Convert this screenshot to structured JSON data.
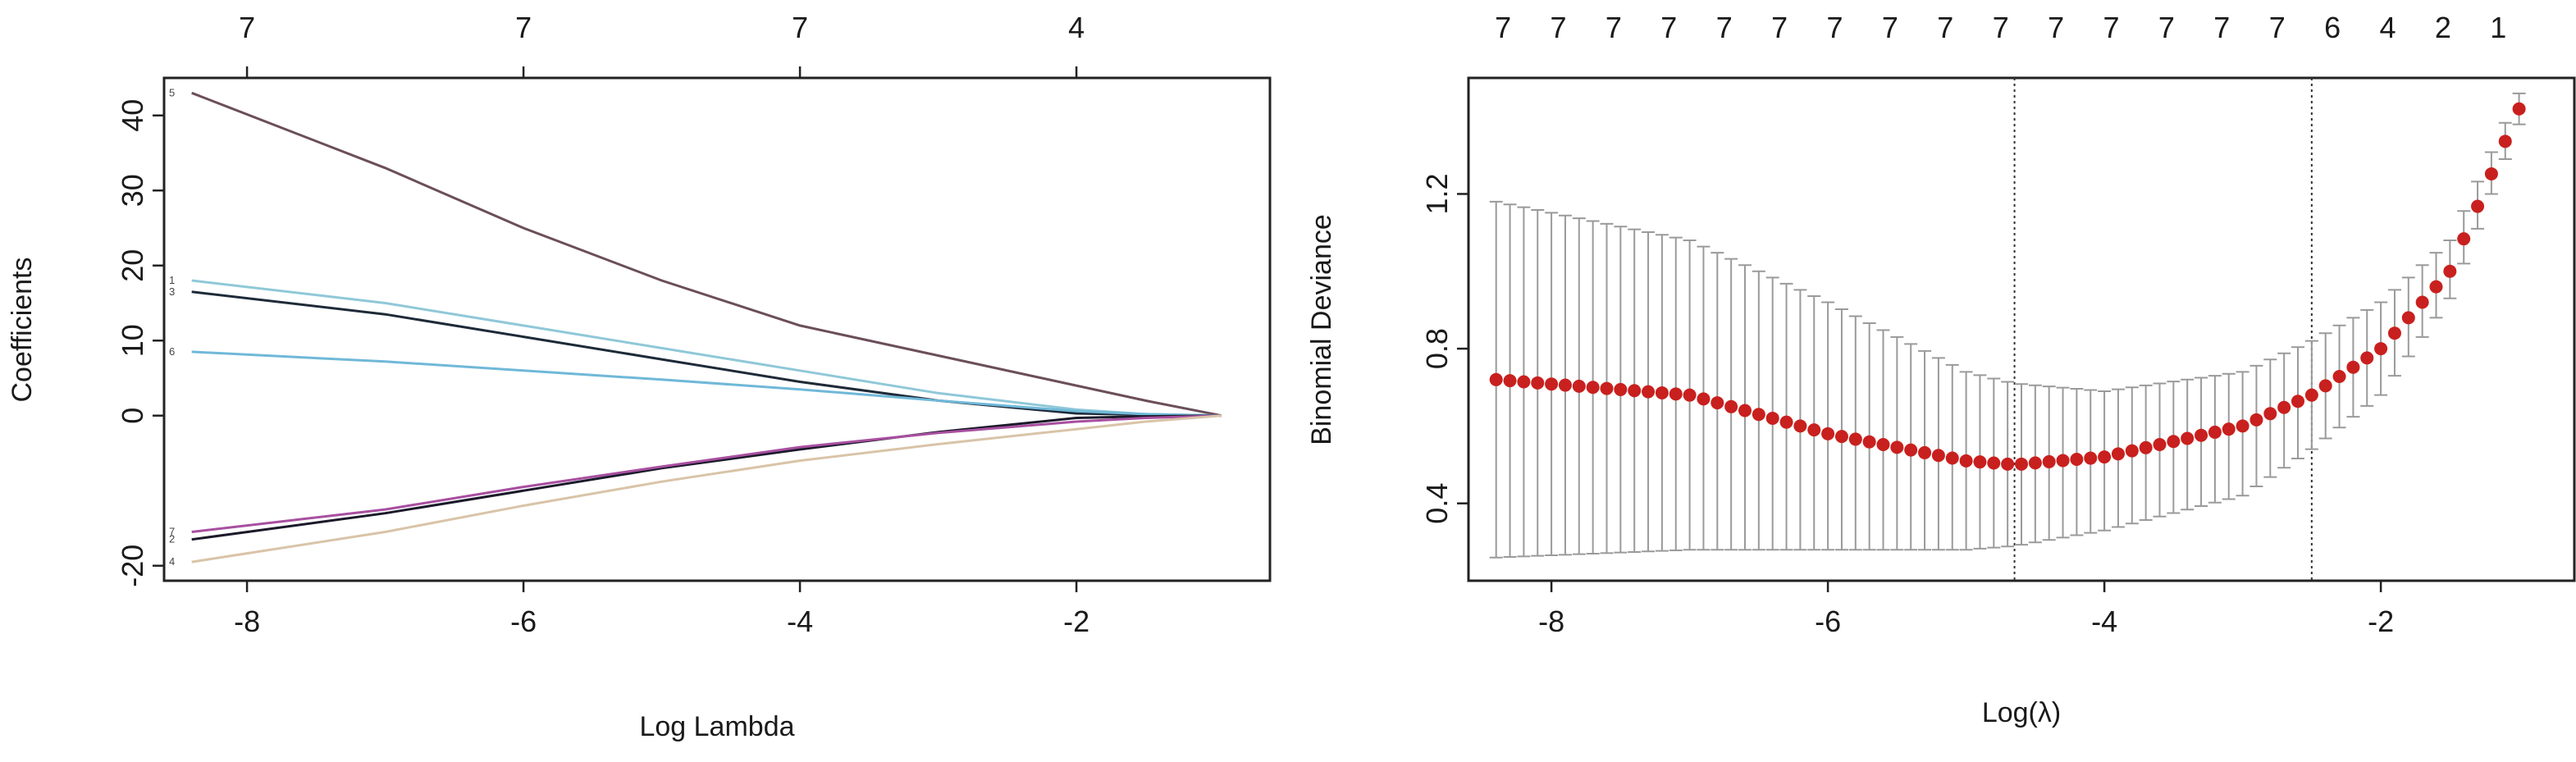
{
  "chart_data": [
    {
      "type": "line",
      "xlabel": "Log Lambda",
      "ylabel": "Coefficients",
      "xlim": [
        -8.6,
        -0.6
      ],
      "ylim": [
        -22,
        45
      ],
      "x_ticks": [
        -8,
        -6,
        -4,
        -2
      ],
      "y_ticks": [
        -20,
        0,
        10,
        20,
        30,
        40
      ],
      "top_axis": {
        "positions": [
          -8,
          -6,
          -4,
          -2
        ],
        "labels": [
          "7",
          "7",
          "7",
          "4"
        ]
      },
      "grid": false,
      "line_end_labels": [
        "5",
        "1",
        "3",
        "6",
        "2",
        "7",
        "4"
      ],
      "series": [
        {
          "color": "#6b4e5a",
          "x": [
            -8.4,
            -7,
            -6,
            -5,
            -4,
            -3,
            -2,
            -1.5,
            -0.95
          ],
          "y": [
            43,
            33,
            25,
            18,
            12,
            8,
            4,
            2,
            0
          ]
        },
        {
          "color": "#8fc8d8",
          "x": [
            -8.4,
            -7,
            -6,
            -5,
            -4,
            -3,
            -2,
            -1.5,
            -0.95
          ],
          "y": [
            18,
            15,
            12,
            9,
            6,
            3,
            0.8,
            0.2,
            0
          ]
        },
        {
          "color": "#1e2a38",
          "x": [
            -8.4,
            -7,
            -6,
            -5,
            -4,
            -3,
            -2,
            -1.5,
            -0.95
          ],
          "y": [
            16.5,
            13.5,
            10.5,
            7.5,
            4.5,
            2,
            0.3,
            0.1,
            0
          ]
        },
        {
          "color": "#6fb8d8",
          "x": [
            -8.4,
            -7,
            -6,
            -5,
            -4,
            -3,
            -2,
            -1.5,
            -0.95
          ],
          "y": [
            8.5,
            7.2,
            6,
            4.8,
            3.5,
            2,
            0.6,
            0.2,
            0
          ]
        },
        {
          "color": "#1a1a2a",
          "x": [
            -8.4,
            -7,
            -6,
            -5,
            -4,
            -3,
            -2,
            -1.5,
            -0.95
          ],
          "y": [
            -16.5,
            -13,
            -10,
            -7,
            -4.5,
            -2.2,
            -0.3,
            -0.1,
            0
          ]
        },
        {
          "color": "#a84fa0",
          "x": [
            -8.4,
            -7,
            -6,
            -5,
            -4,
            -3,
            -2,
            -1.5,
            -0.95
          ],
          "y": [
            -15.5,
            -12.5,
            -9.5,
            -6.8,
            -4.2,
            -2.3,
            -0.8,
            -0.3,
            0
          ]
        },
        {
          "color": "#d9c4a8",
          "x": [
            -8.4,
            -7,
            -6,
            -5,
            -4,
            -3,
            -2,
            -1.5,
            -0.95
          ],
          "y": [
            -19.5,
            -15.5,
            -12,
            -8.8,
            -6,
            -3.8,
            -1.8,
            -0.8,
            0
          ]
        }
      ]
    },
    {
      "type": "scatter",
      "xlabel": "Log(λ)",
      "ylabel": "Binomial Deviance",
      "xlim": [
        -8.6,
        -0.6
      ],
      "ylim": [
        0.2,
        1.5
      ],
      "x_ticks": [
        -8,
        -6,
        -4,
        -2
      ],
      "y_ticks": [
        0.4,
        0.8,
        1.2
      ],
      "top_axis": {
        "positions": [
          -8.35,
          -7.95,
          -7.55,
          -7.15,
          -6.75,
          -6.35,
          -5.95,
          -5.55,
          -5.15,
          -4.75,
          -4.35,
          -3.95,
          -3.55,
          -3.15,
          -2.75,
          -2.35,
          -1.95,
          -1.55,
          -1.15
        ],
        "labels": [
          "7",
          "7",
          "7",
          "7",
          "7",
          "7",
          "7",
          "7",
          "7",
          "7",
          "7",
          "7",
          "7",
          "7",
          "7",
          "6",
          "4",
          "2",
          "1"
        ]
      },
      "vlines": [
        -4.65,
        -2.5
      ],
      "grid": false,
      "point_color": "#c8201e",
      "errorbar_color": "#9a9a9a",
      "curve_knots": {
        "x": [
          -8.4,
          -7,
          -6,
          -5,
          -4.65,
          -4,
          -3,
          -2.5,
          -2,
          -1.5,
          -1
        ],
        "mean": [
          0.72,
          0.68,
          0.58,
          0.51,
          0.5,
          0.52,
          0.6,
          0.68,
          0.8,
          1.0,
          1.42
        ],
        "upper": [
          1.18,
          1.08,
          0.92,
          0.74,
          0.71,
          0.69,
          0.74,
          0.82,
          0.92,
          1.08,
          1.46
        ],
        "lower": [
          0.26,
          0.28,
          0.28,
          0.28,
          0.29,
          0.33,
          0.42,
          0.54,
          0.68,
          0.93,
          1.38
        ]
      },
      "n_points": 75
    }
  ]
}
